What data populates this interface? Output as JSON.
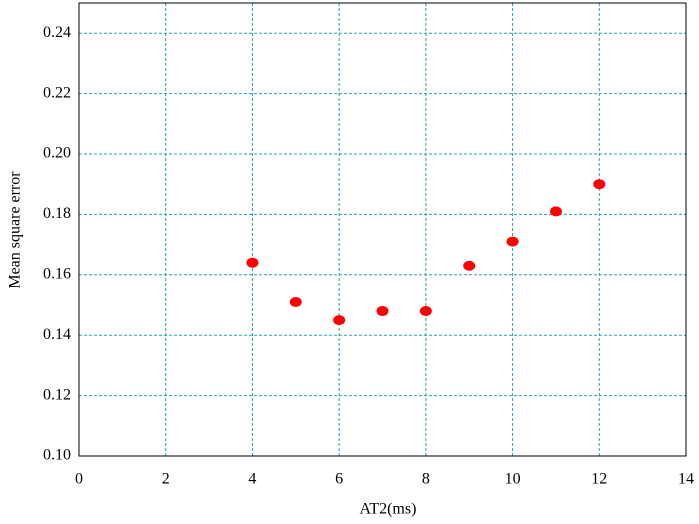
{
  "chart_data": {
    "type": "scatter",
    "x_label": "AT2(ms)",
    "y_label": "Mean square error",
    "series": [
      {
        "color": "#ff0000",
        "x": [
          4,
          5,
          6,
          7,
          8,
          9,
          10,
          11,
          12
        ],
        "values": [
          0.164,
          0.151,
          0.145,
          0.148,
          0.148,
          0.163,
          0.171,
          0.181,
          0.19
        ]
      }
    ],
    "xlim": [
      0,
      14
    ],
    "xticks": [
      0,
      2,
      4,
      6,
      8,
      10,
      12,
      14
    ],
    "ylim": [
      0.1,
      0.25
    ],
    "yticks": [
      {
        "value": 0.1,
        "label": "0.10"
      },
      0.12,
      0.14,
      0.16,
      0.18,
      {
        "value": 0.2,
        "label": "0.20"
      },
      0.22,
      0.24
    ],
    "grid": true
  }
}
